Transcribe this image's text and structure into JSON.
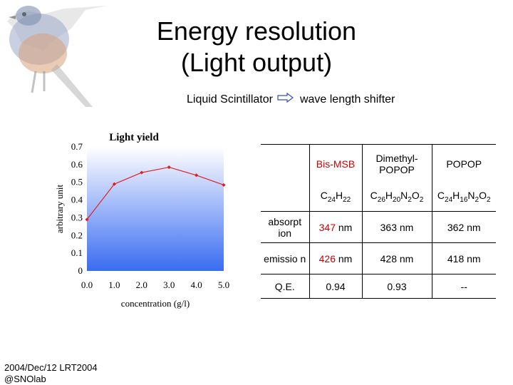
{
  "slide": {
    "title_line1": "Energy resolution",
    "title_line2": "(Light output)",
    "subtitle_left": "Liquid Scintillator",
    "subtitle_right": "wave length shifter",
    "footer_line1": "2004/Dec/12 LRT2004",
    "footer_line2": "@SNOlab"
  },
  "chart_data": {
    "type": "line",
    "title": "Light yield",
    "xlabel": "concentration (g/l)",
    "ylabel": "arbitrary unit",
    "x": [
      0.0,
      1.0,
      2.0,
      3.0,
      4.0,
      5.0
    ],
    "x_tick_labels": [
      "0.0",
      "1.0",
      "2.0",
      "3.0",
      "4.0",
      "5.0"
    ],
    "y_tick_labels": [
      "0",
      "0.1",
      "0.2",
      "0.3",
      "0.4",
      "0.5",
      "0.6",
      "0.7"
    ],
    "y_ticks": [
      0,
      0.1,
      0.2,
      0.3,
      0.4,
      0.5,
      0.6,
      0.7
    ],
    "xlim": [
      0,
      5
    ],
    "ylim": [
      0,
      0.7
    ],
    "series": [
      {
        "values": [
          0.29,
          0.49,
          0.555,
          0.585,
          0.54,
          0.485
        ]
      }
    ],
    "colors": {
      "line": "#e02020",
      "gradient_top": "#ffffff",
      "gradient_bottom": "#3a6cf2"
    },
    "grid": false
  },
  "table": {
    "headers": [
      "Bis-MSB",
      "Dimethyl-POPOP",
      "POPOP"
    ],
    "formulas": [
      [
        {
          "t": "C"
        },
        {
          "s": "24"
        },
        {
          "t": "H"
        },
        {
          "s": "22"
        }
      ],
      [
        {
          "t": "C"
        },
        {
          "s": "26"
        },
        {
          "t": "H"
        },
        {
          "s": "20"
        },
        {
          "t": "N"
        },
        {
          "s": "2"
        },
        {
          "t": "O"
        },
        {
          "s": "2"
        }
      ],
      [
        {
          "t": "C"
        },
        {
          "s": "24"
        },
        {
          "t": "H"
        },
        {
          "s": "16"
        },
        {
          "t": "N"
        },
        {
          "s": "2"
        },
        {
          "t": "O"
        },
        {
          "s": "2"
        }
      ]
    ],
    "rows": [
      {
        "label": "absorpt ion",
        "values": [
          {
            "v": "347",
            "u": " nm"
          },
          {
            "v": "363",
            "u": " nm"
          },
          {
            "v": "362",
            "u": " nm"
          }
        ]
      },
      {
        "label": "emissio n",
        "values": [
          {
            "v": "426",
            "u": " nm"
          },
          {
            "v": "428",
            "u": " nm"
          },
          {
            "v": "418",
            "u": " nm"
          }
        ]
      },
      {
        "label": "Q.E.",
        "values": [
          {
            "v": "0.94",
            "u": ""
          },
          {
            "v": "0.93",
            "u": ""
          },
          {
            "v": "--",
            "u": ""
          }
        ]
      }
    ],
    "accent_color": "#cc0000"
  }
}
